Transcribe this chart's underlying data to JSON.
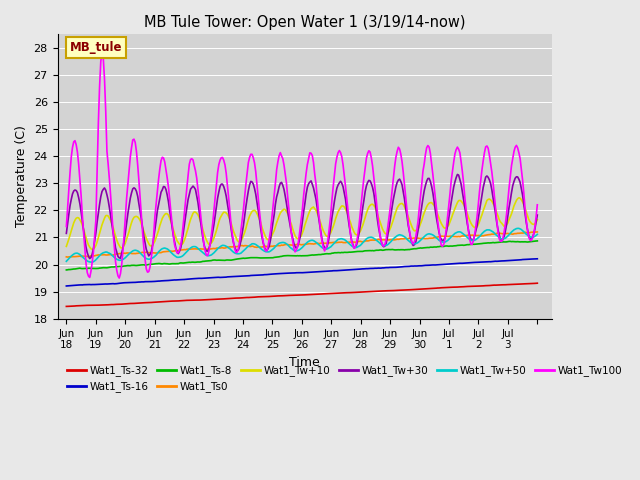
{
  "title": "MB Tule Tower: Open Water 1 (3/19/14-now)",
  "xlabel": "Time",
  "ylabel": "Temperature (C)",
  "ylim": [
    18.0,
    28.5
  ],
  "yticks": [
    18.0,
    19.0,
    20.0,
    21.0,
    22.0,
    23.0,
    24.0,
    25.0,
    26.0,
    27.0,
    28.0
  ],
  "bg_color": "#e8e8e8",
  "plot_bg": "#d3d3d3",
  "annotation_text": "MB_tule",
  "annotation_bg": "#ffffc0",
  "annotation_border": "#c8a000",
  "series_order": [
    "Wat1_Ts-32",
    "Wat1_Ts-16",
    "Wat1_Ts-8",
    "Wat1_Ts0",
    "Wat1_Tw+10",
    "Wat1_Tw+30",
    "Wat1_Tw+50",
    "Wat1_Tw100"
  ],
  "series": {
    "Wat1_Ts-32": {
      "color": "#dd0000",
      "lw": 1.2
    },
    "Wat1_Ts-16": {
      "color": "#0000cc",
      "lw": 1.2
    },
    "Wat1_Ts-8": {
      "color": "#00bb00",
      "lw": 1.2
    },
    "Wat1_Ts0": {
      "color": "#ff8800",
      "lw": 1.2
    },
    "Wat1_Tw+10": {
      "color": "#dddd00",
      "lw": 1.2
    },
    "Wat1_Tw+30": {
      "color": "#8800aa",
      "lw": 1.2
    },
    "Wat1_Tw+50": {
      "color": "#00cccc",
      "lw": 1.2
    },
    "Wat1_Tw100": {
      "color": "#ff00ff",
      "lw": 1.2
    }
  },
  "legend_row1": [
    "Wat1_Ts-32",
    "Wat1_Ts-16",
    "Wat1_Ts-8",
    "Wat1_Ts0",
    "Wat1_Tw+10",
    "Wat1_Tw+30"
  ],
  "legend_row2": [
    "Wat1_Tw+50",
    "Wat1_Tw100"
  ]
}
